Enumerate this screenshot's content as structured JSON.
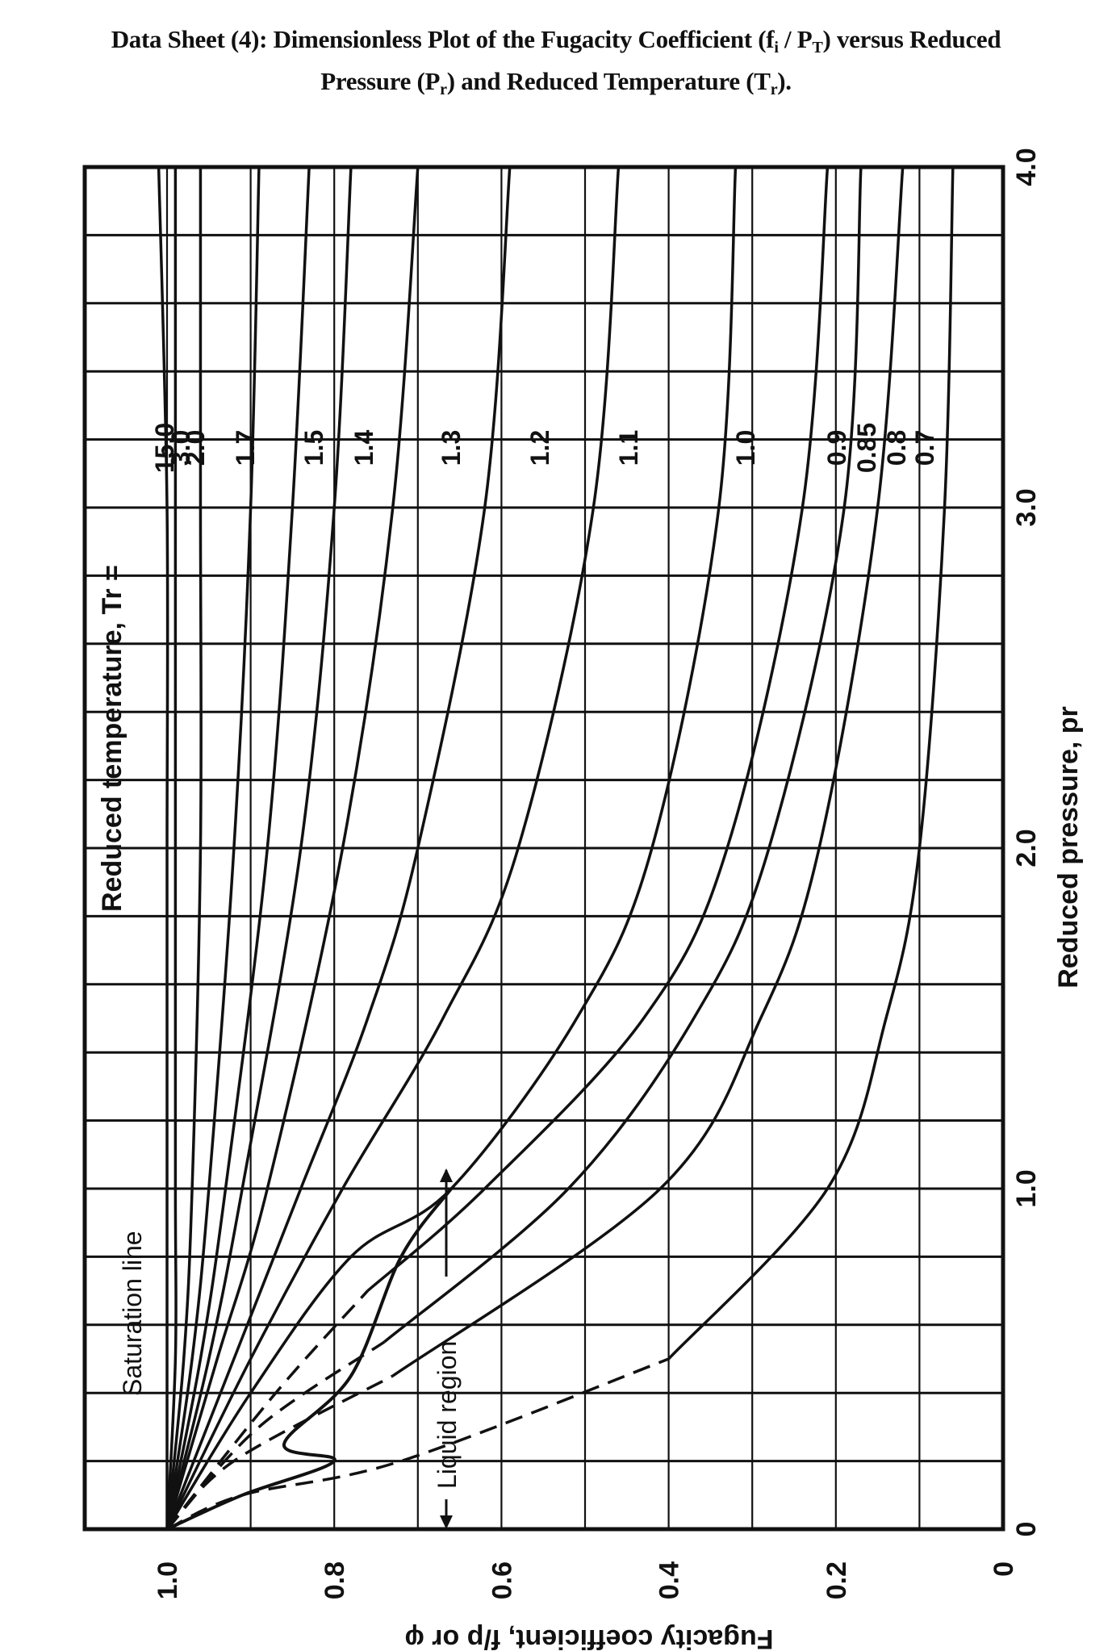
{
  "title": {
    "line1_prefix": "Data Sheet (4): Dimensionless Plot of the Fugacity Coefficient (f",
    "line1_sub_i": "i",
    "line1_mid": " / P",
    "line1_sub_T": "T",
    "line1_suffix": ") versus Reduced",
    "line2_prefix": "Pressure (P",
    "line2_sub_r1": "r",
    "line2_mid": ") and Reduced Temperature (T",
    "line2_sub_r2": "r",
    "line2_suffix": ")."
  },
  "chart_data": {
    "type": "line",
    "title": "Data Sheet (4): Dimensionless Plot of the Fugacity Coefficient (fi / PT) versus Reduced Pressure (Pr) and Reduced Temperature (Tr).",
    "orientation": "rotated 90° clockwise: fugacity coefficient runs along the bottom (1.0 at left → 0 at right), reduced pressure runs along the right side (0 at bottom → 4.0 at top)",
    "xlabel": "Reduced pressure, p_r",
    "ylabel": "Fugacity coefficient, f/p or φ",
    "xlim": [
      0,
      4.0
    ],
    "ylim": [
      0,
      1.1
    ],
    "x_ticks": [
      0,
      1.0,
      2.0,
      3.0,
      4.0
    ],
    "x_tick_labels": [
      "0",
      "1.0",
      "2.0",
      "3.0",
      "4.0"
    ],
    "y_ticks": [
      0,
      0.2,
      0.4,
      0.6,
      0.8,
      1.0
    ],
    "y_tick_labels": [
      "0",
      "0.2",
      "0.4",
      "0.6",
      "0.8",
      "1.0"
    ],
    "grid": true,
    "grid_x_step": 0.2,
    "grid_y_step": 0.1,
    "legend_title": "Reduced temperature, T_r =",
    "annotations": [
      "Saturation line",
      "Liquid region"
    ],
    "series": [
      {
        "name": "15.0",
        "style": "solid",
        "x": [
          0,
          0.5,
          1.0,
          2.0,
          3.0,
          4.0
        ],
        "y": [
          1.0,
          1.0,
          1.0,
          1.0,
          1.0,
          1.01
        ]
      },
      {
        "name": "3.0",
        "style": "solid",
        "x": [
          0,
          0.5,
          1.0,
          2.0,
          3.0,
          4.0
        ],
        "y": [
          1.0,
          0.99,
          0.99,
          0.99,
          0.99,
          0.99
        ]
      },
      {
        "name": "2.0",
        "style": "solid",
        "x": [
          0,
          0.5,
          1.0,
          2.0,
          3.0,
          4.0
        ],
        "y": [
          1.0,
          0.98,
          0.97,
          0.96,
          0.96,
          0.96
        ]
      },
      {
        "name": "1.7",
        "style": "solid",
        "x": [
          0,
          0.5,
          1.0,
          2.0,
          3.0,
          4.0
        ],
        "y": [
          1.0,
          0.97,
          0.95,
          0.92,
          0.9,
          0.89
        ]
      },
      {
        "name": "1.5",
        "style": "solid",
        "x": [
          0,
          0.5,
          1.0,
          2.0,
          3.0,
          4.0
        ],
        "y": [
          1.0,
          0.96,
          0.93,
          0.88,
          0.85,
          0.83
        ]
      },
      {
        "name": "1.4",
        "style": "solid",
        "x": [
          0,
          0.5,
          1.0,
          2.0,
          3.0,
          4.0
        ],
        "y": [
          1.0,
          0.95,
          0.91,
          0.84,
          0.8,
          0.78
        ]
      },
      {
        "name": "1.3",
        "style": "solid",
        "x": [
          0,
          0.5,
          1.0,
          2.0,
          3.0,
          4.0
        ],
        "y": [
          1.0,
          0.94,
          0.88,
          0.79,
          0.73,
          0.7
        ]
      },
      {
        "name": "1.2",
        "style": "solid",
        "x": [
          0,
          0.5,
          1.0,
          1.5,
          2.0,
          3.0,
          4.0
        ],
        "y": [
          1.0,
          0.92,
          0.84,
          0.76,
          0.7,
          0.62,
          0.59
        ]
      },
      {
        "name": "1.1",
        "style": "solid",
        "x": [
          0,
          0.5,
          1.0,
          1.5,
          2.0,
          3.0,
          4.0
        ],
        "y": [
          1.0,
          0.9,
          0.79,
          0.67,
          0.58,
          0.49,
          0.46
        ]
      },
      {
        "name": "1.0",
        "style": "solid",
        "x": [
          0,
          0.4,
          0.8,
          1.0,
          1.5,
          2.0,
          3.0,
          4.0
        ],
        "y": [
          1.0,
          0.9,
          0.78,
          0.66,
          0.51,
          0.42,
          0.34,
          0.32
        ]
      },
      {
        "name": "0.9",
        "style": "solid+dashed",
        "x": [
          0,
          0.4,
          0.7,
          1.0,
          1.5,
          2.0,
          3.0,
          4.0
        ],
        "y": [
          1.0,
          0.87,
          0.76,
          0.62,
          0.43,
          0.33,
          0.24,
          0.21
        ]
      },
      {
        "name": "0.85",
        "style": "solid+dashed",
        "x": [
          0,
          0.3,
          0.55,
          1.0,
          1.5,
          2.0,
          3.0,
          4.0
        ],
        "y": [
          1.0,
          0.89,
          0.74,
          0.52,
          0.37,
          0.28,
          0.19,
          0.17
        ]
      },
      {
        "name": "0.8",
        "style": "solid+dashed",
        "x": [
          0,
          0.2,
          0.45,
          1.0,
          1.5,
          2.0,
          3.0,
          4.0
        ],
        "y": [
          1.0,
          0.92,
          0.73,
          0.41,
          0.29,
          0.22,
          0.15,
          0.12
        ]
      },
      {
        "name": "0.7",
        "style": "solid+dashed",
        "x": [
          0,
          0.1,
          0.2,
          0.5,
          1.0,
          1.5,
          2.0,
          3.0,
          4.0
        ],
        "y": [
          1.0,
          0.91,
          0.72,
          0.4,
          0.21,
          0.14,
          0.1,
          0.07,
          0.06
        ]
      }
    ],
    "saturation_line": {
      "x": [
        0.0,
        0.1,
        0.2,
        0.25,
        0.45,
        0.8,
        1.0
      ],
      "y": [
        1.0,
        0.91,
        0.8,
        0.86,
        0.78,
        0.72,
        0.66
      ]
    }
  },
  "axes": {
    "bottom_ticks": [
      "1.0",
      "0.8",
      "0.6",
      "0.4",
      "0.2",
      "0"
    ],
    "bottom_title": "Fugacity coefficient, f/p or φ",
    "right_ticks": [
      "0",
      "1.0",
      "2.0",
      "3.0",
      "4.0"
    ],
    "right_title": "Reduced pressure, p",
    "right_title_sub": "r",
    "legend_title": "Reduced temperature, T",
    "legend_title_sub": "r",
    "legend_title_eq": " =",
    "curve_labels": [
      "15.0",
      "3.0",
      "2.0",
      "1.7",
      "1.5",
      "1.4",
      "1.3",
      "1.2",
      "1.1",
      "1.0",
      "0.9",
      "0.85",
      "0.8",
      "0.7"
    ],
    "saturation_label": "Saturation line",
    "liquid_label": "Liquid region"
  }
}
